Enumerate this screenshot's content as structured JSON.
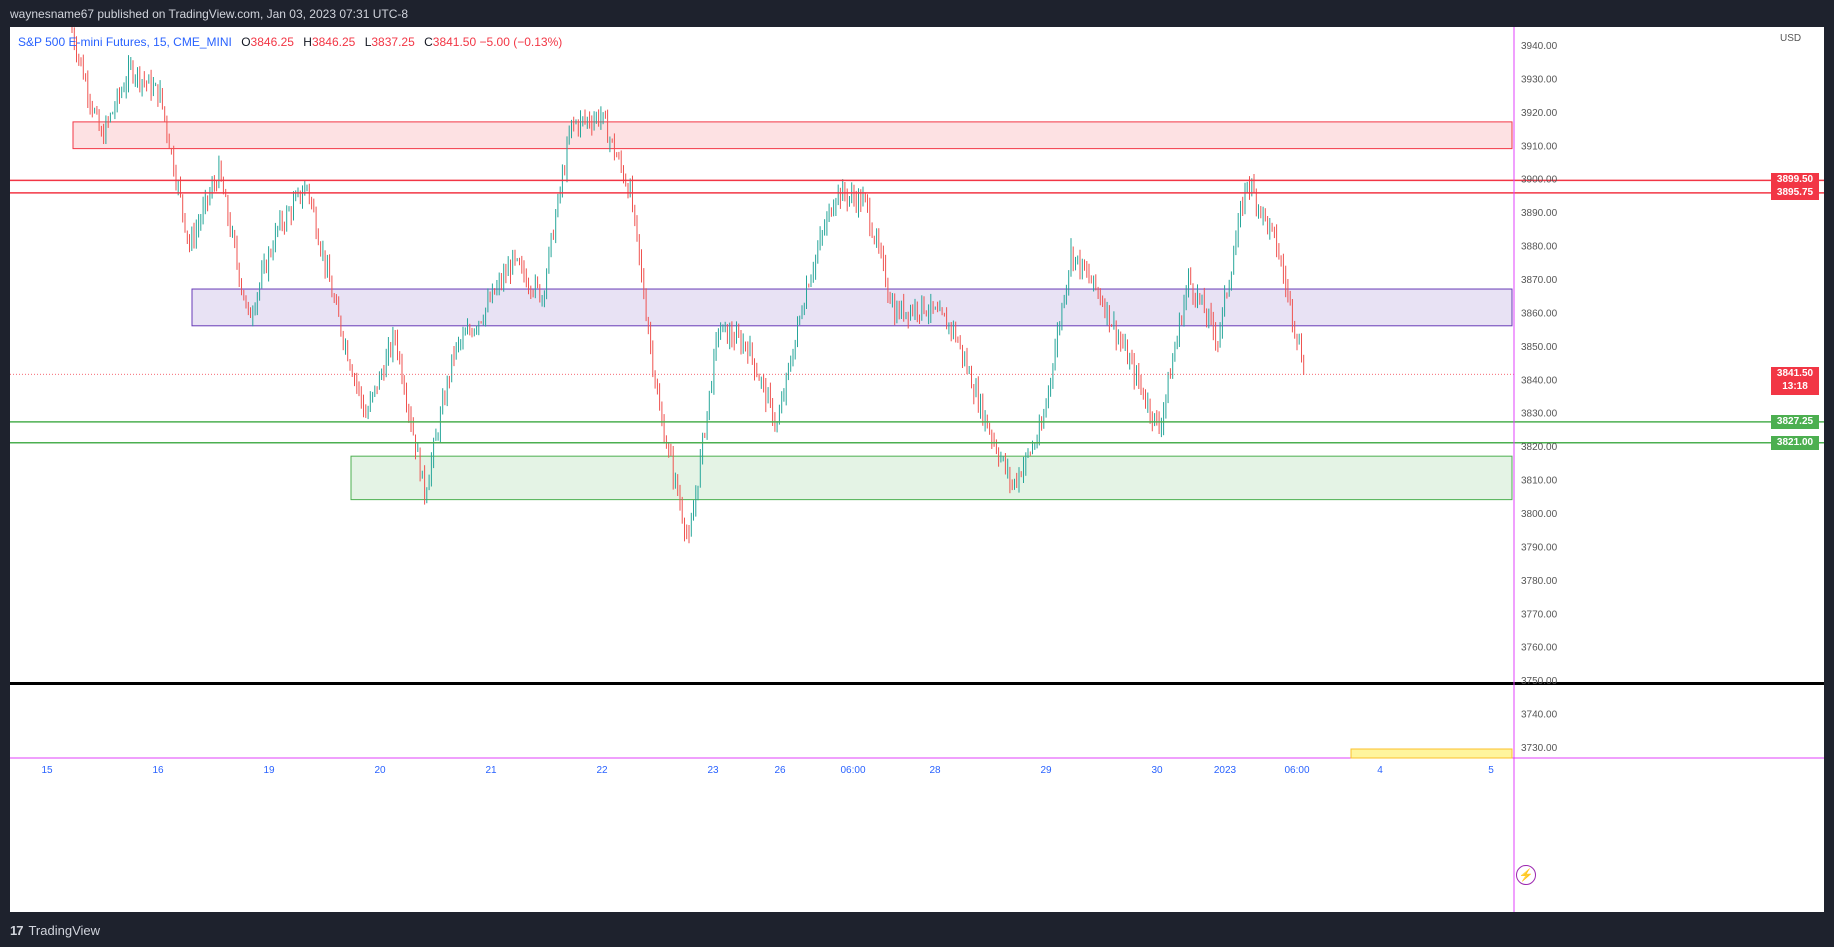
{
  "header": {
    "published": "waynesname67 published on TradingView.com, Jan 03, 2023 07:31 UTC-8"
  },
  "legend": {
    "symbol": "S&P 500 E-mini Futures, 15, CME_MINI",
    "open_label": "O",
    "open": "3846.25",
    "high_label": "H",
    "high": "3846.25",
    "low_label": "L",
    "low": "3837.25",
    "close_label": "C",
    "close": "3841.50",
    "change": "−5.00 (−0.13%)"
  },
  "axis": {
    "currency": "USD",
    "last_price": "3841.50",
    "countdown": "13:18"
  },
  "footer": {
    "brand": "TradingView",
    "logo": "17"
  },
  "colors": {
    "up": "#26a69a",
    "down": "#ef5350",
    "resistance_zone": "#f23645",
    "support_zone": "#4caf50",
    "pivot_zone": "#673ab7",
    "axis_line": "#e040fb"
  },
  "chart_data": {
    "type": "candlestick",
    "title": "S&P 500 E-mini Futures, 15, CME_MINI",
    "ylim": [
      3726,
      3945
    ],
    "y_ticks": [
      3940,
      3930,
      3920,
      3910,
      3900,
      3890,
      3880,
      3870,
      3860,
      3850,
      3840,
      3830,
      3820,
      3810,
      3800,
      3790,
      3780,
      3770,
      3760,
      3750,
      3740,
      3730
    ],
    "x_ticks": [
      "15",
      "16",
      "19",
      "20",
      "21",
      "22",
      "23",
      "26",
      "06:00",
      "28",
      "29",
      "30",
      "2023",
      "06:00",
      "4",
      "5"
    ],
    "zones": [
      {
        "kind": "resistance",
        "from_x": "15",
        "y_low": 3909,
        "y_high": 3917
      },
      {
        "kind": "pivot",
        "from_x": "16",
        "y_low": 3856,
        "y_high": 3867
      },
      {
        "kind": "support",
        "from_x": "19",
        "y_low": 3804,
        "y_high": 3817
      }
    ],
    "horizontal_lines": [
      {
        "label": "3899.50",
        "y": 3899.5,
        "color": "#f23645"
      },
      {
        "label": "3895.75",
        "y": 3895.75,
        "color": "#f23645"
      },
      {
        "label": "3827.25",
        "y": 3827.25,
        "color": "#4caf50"
      },
      {
        "label": "3821.00",
        "y": 3821.0,
        "color": "#4caf50"
      },
      {
        "label": "",
        "y": 3749,
        "color": "#000000"
      }
    ],
    "last_price": 3841.5,
    "price_path": [
      {
        "x": "15",
        "y": 3944
      },
      {
        "x": "15",
        "y": 3912
      },
      {
        "x": "15",
        "y": 3933
      },
      {
        "x": "16",
        "y": 3925
      },
      {
        "x": "16",
        "y": 3880
      },
      {
        "x": "16",
        "y": 3902
      },
      {
        "x": "16",
        "y": 3858
      },
      {
        "x": "16",
        "y": 3885
      },
      {
        "x": "19",
        "y": 3898
      },
      {
        "x": "19",
        "y": 3860
      },
      {
        "x": "19",
        "y": 3829
      },
      {
        "x": "19",
        "y": 3853
      },
      {
        "x": "20",
        "y": 3806
      },
      {
        "x": "20",
        "y": 3848
      },
      {
        "x": "20",
        "y": 3860
      },
      {
        "x": "21",
        "y": 3875
      },
      {
        "x": "21",
        "y": 3865
      },
      {
        "x": "21",
        "y": 3916
      },
      {
        "x": "22",
        "y": 3919
      },
      {
        "x": "22",
        "y": 3896
      },
      {
        "x": "22",
        "y": 3830
      },
      {
        "x": "22",
        "y": 3791
      },
      {
        "x": "23",
        "y": 3855
      },
      {
        "x": "23",
        "y": 3850
      },
      {
        "x": "23",
        "y": 3826
      },
      {
        "x": "26",
        "y": 3868
      },
      {
        "x": "26",
        "y": 3896
      },
      {
        "x": "06:00",
        "y": 3893
      },
      {
        "x": "06:00",
        "y": 3860
      },
      {
        "x": "28",
        "y": 3862
      },
      {
        "x": "28",
        "y": 3855
      },
      {
        "x": "28",
        "y": 3830
      },
      {
        "x": "29",
        "y": 3808
      },
      {
        "x": "29",
        "y": 3825
      },
      {
        "x": "29",
        "y": 3878
      },
      {
        "x": "30",
        "y": 3865
      },
      {
        "x": "30",
        "y": 3845
      },
      {
        "x": "30",
        "y": 3825
      },
      {
        "x": "2023",
        "y": 3870
      },
      {
        "x": "2023",
        "y": 3852
      },
      {
        "x": "2023",
        "y": 3900
      },
      {
        "x": "06:00",
        "y": 3880
      },
      {
        "x": "06:00",
        "y": 3841.5
      }
    ]
  }
}
